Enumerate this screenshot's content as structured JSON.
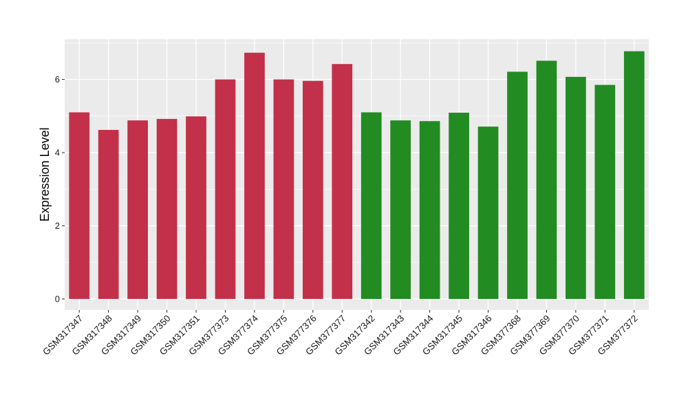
{
  "chart_data": {
    "type": "bar",
    "title": "",
    "xlabel": "",
    "ylabel": "Expression Level",
    "ylim": [
      -0.3,
      7.1
    ],
    "yticks": [
      0,
      2,
      4,
      6
    ],
    "grid": true,
    "legend": "none",
    "background_color": "#EBEBEB",
    "gridline_color": "#FFFFFF",
    "categories": [
      "GSM317347",
      "GSM317348",
      "GSM317349",
      "GSM317350",
      "GSM317351",
      "GSM377373",
      "GSM377374",
      "GSM377375",
      "GSM377376",
      "GSM377377",
      "GSM317342",
      "GSM317343",
      "GSM317344",
      "GSM317345",
      "GSM317346",
      "GSM377368",
      "GSM377369",
      "GSM377370",
      "GSM377371",
      "GSM377372"
    ],
    "values": [
      5.1,
      4.62,
      4.88,
      4.92,
      4.99,
      6.0,
      6.73,
      6.0,
      5.96,
      6.42,
      5.1,
      4.88,
      4.86,
      5.09,
      4.71,
      6.21,
      6.51,
      6.07,
      5.85,
      6.77
    ],
    "bar_colors": [
      "#C3304A",
      "#C3304A",
      "#C3304A",
      "#C3304A",
      "#C3304A",
      "#C3304A",
      "#C3304A",
      "#C3304A",
      "#C3304A",
      "#C3304A",
      "#228B22",
      "#228B22",
      "#228B22",
      "#228B22",
      "#228B22",
      "#228B22",
      "#228B22",
      "#228B22",
      "#228B22",
      "#228B22"
    ]
  }
}
